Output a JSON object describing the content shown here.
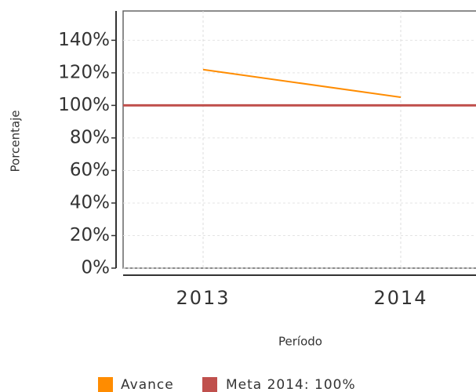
{
  "chart_data": {
    "type": "line",
    "y_label": "Porcentaje",
    "x_label": "Período",
    "categories": [
      "2013",
      "2014"
    ],
    "series": [
      {
        "name": "Avance",
        "color": "#ff8c00",
        "values": [
          122,
          105
        ]
      }
    ],
    "threshold": {
      "name": "Meta 2014: 100%",
      "color": "#c0504d",
      "value": 100
    },
    "ylim": [
      0,
      158
    ],
    "yticks": [
      {
        "value": 0,
        "label": "0%"
      },
      {
        "value": 20,
        "label": "20%"
      },
      {
        "value": 40,
        "label": "40%"
      },
      {
        "value": 60,
        "label": "60%"
      },
      {
        "value": 80,
        "label": "80%"
      },
      {
        "value": 100,
        "label": "100%"
      },
      {
        "value": 120,
        "label": "120%"
      },
      {
        "value": 140,
        "label": "140%"
      }
    ],
    "grid": true
  }
}
